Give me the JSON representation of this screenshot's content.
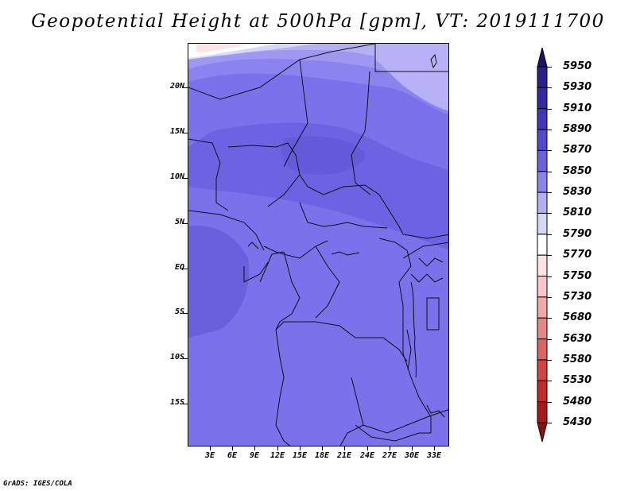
{
  "title": "Geopotential Height at 500hPa [gpm], VT: 2019111700",
  "credit": "GrADS: IGES/COLA",
  "map": {
    "lat_labels": [
      "20N",
      "15N",
      "10N",
      "5N",
      "EQ",
      "5S",
      "10S",
      "15S"
    ],
    "lon_labels": [
      "3E",
      "6E",
      "9E",
      "12E",
      "15E",
      "18E",
      "21E",
      "24E",
      "27E",
      "30E",
      "33E"
    ]
  },
  "colorbar": {
    "levels": [
      "5950",
      "5930",
      "5910",
      "5890",
      "5870",
      "5850",
      "5830",
      "5810",
      "5790",
      "5770",
      "5750",
      "5730",
      "5680",
      "5630",
      "5580",
      "5530",
      "5480",
      "5430"
    ],
    "colors": [
      "#1e1470",
      "#2a1f8c",
      "#3528a8",
      "#4236be",
      "#5448d0",
      "#6a60e0",
      "#8a82ee",
      "#b2aef6",
      "#d6d6fb",
      "#ffffff",
      "#fde3e3",
      "#f8c6c6",
      "#f2a8a8",
      "#e88686",
      "#de6464",
      "#d44242",
      "#c42828",
      "#a81818",
      "#8a1010"
    ]
  }
}
